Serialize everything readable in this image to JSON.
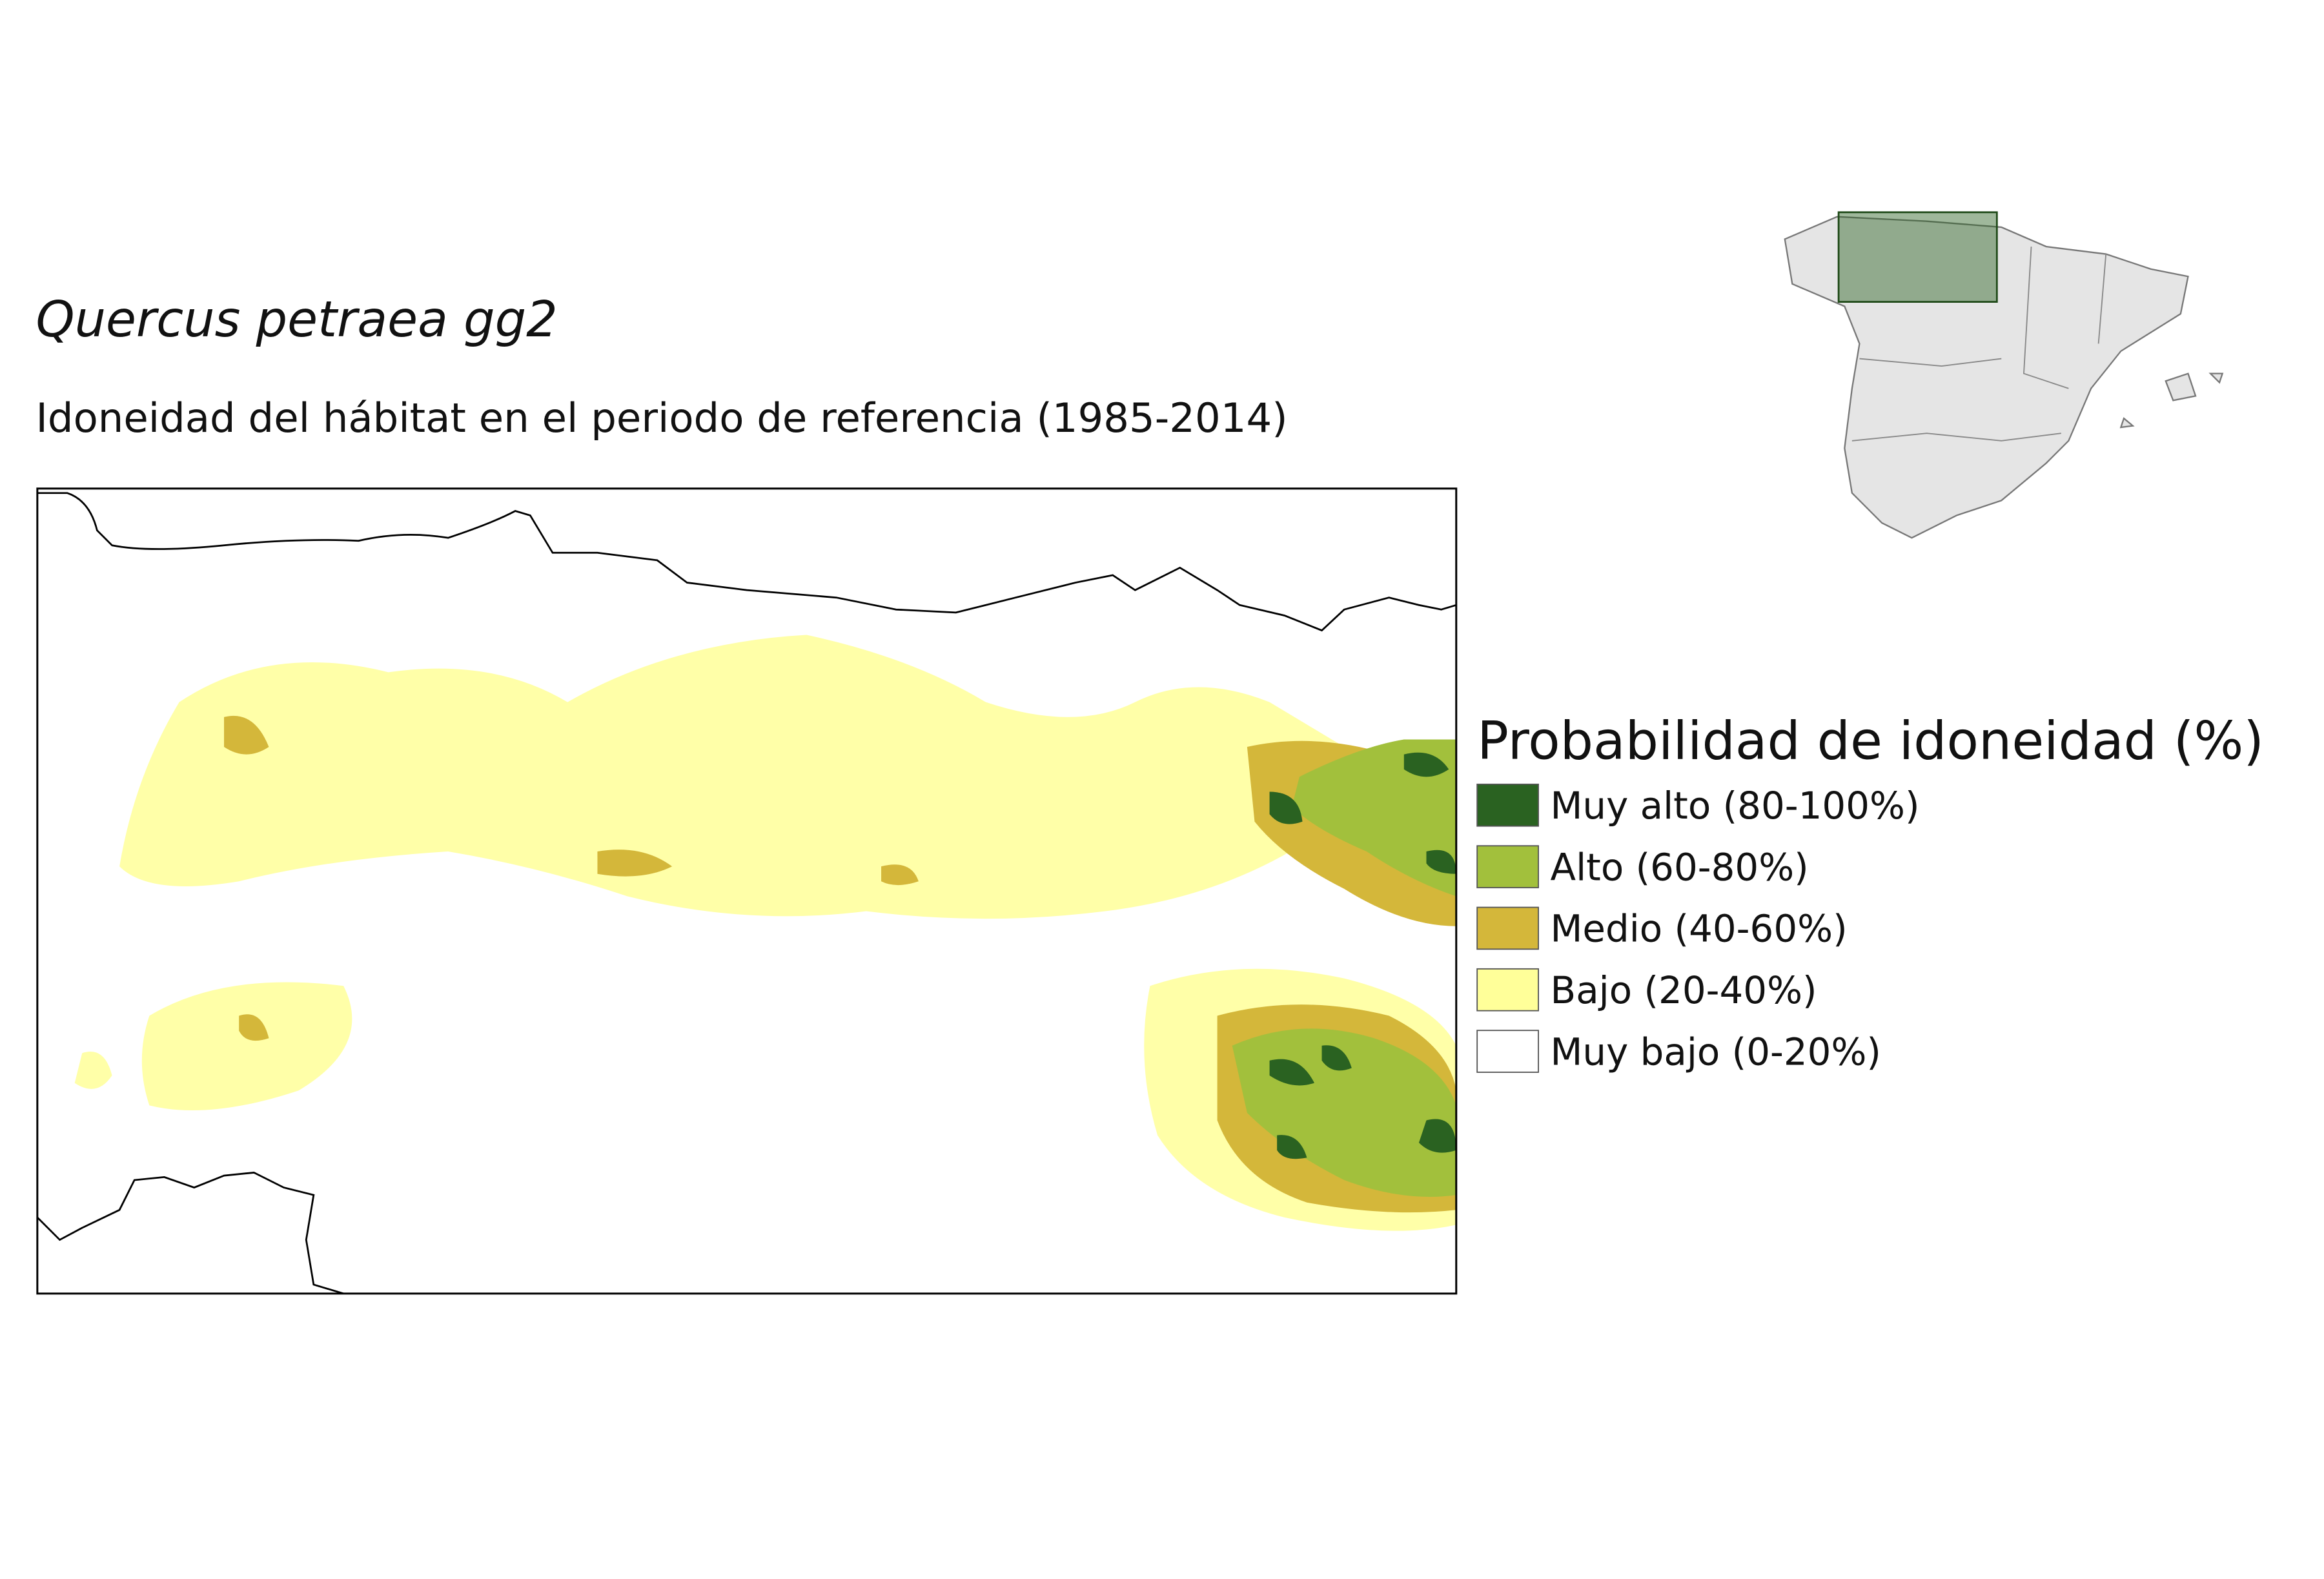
{
  "header": {
    "title": "Quercus petraea gg2",
    "subtitle": "Idoneidad del hábitat en el periodo de referencia (1985-2014)"
  },
  "legend": {
    "title": "Probabilidad de idoneidad (%)",
    "items": [
      {
        "label": "Muy alto (80-100%)",
        "color": "#2a6221"
      },
      {
        "label": "Alto (60-80%)",
        "color": "#a2c03c"
      },
      {
        "label": "Medio (40-60%)",
        "color": "#d4b73a"
      },
      {
        "label": "Bajo (20-40%)",
        "color": "#ffff99"
      },
      {
        "label": "Muy bajo (0-20%)",
        "color": "#ffffff"
      }
    ]
  }
}
